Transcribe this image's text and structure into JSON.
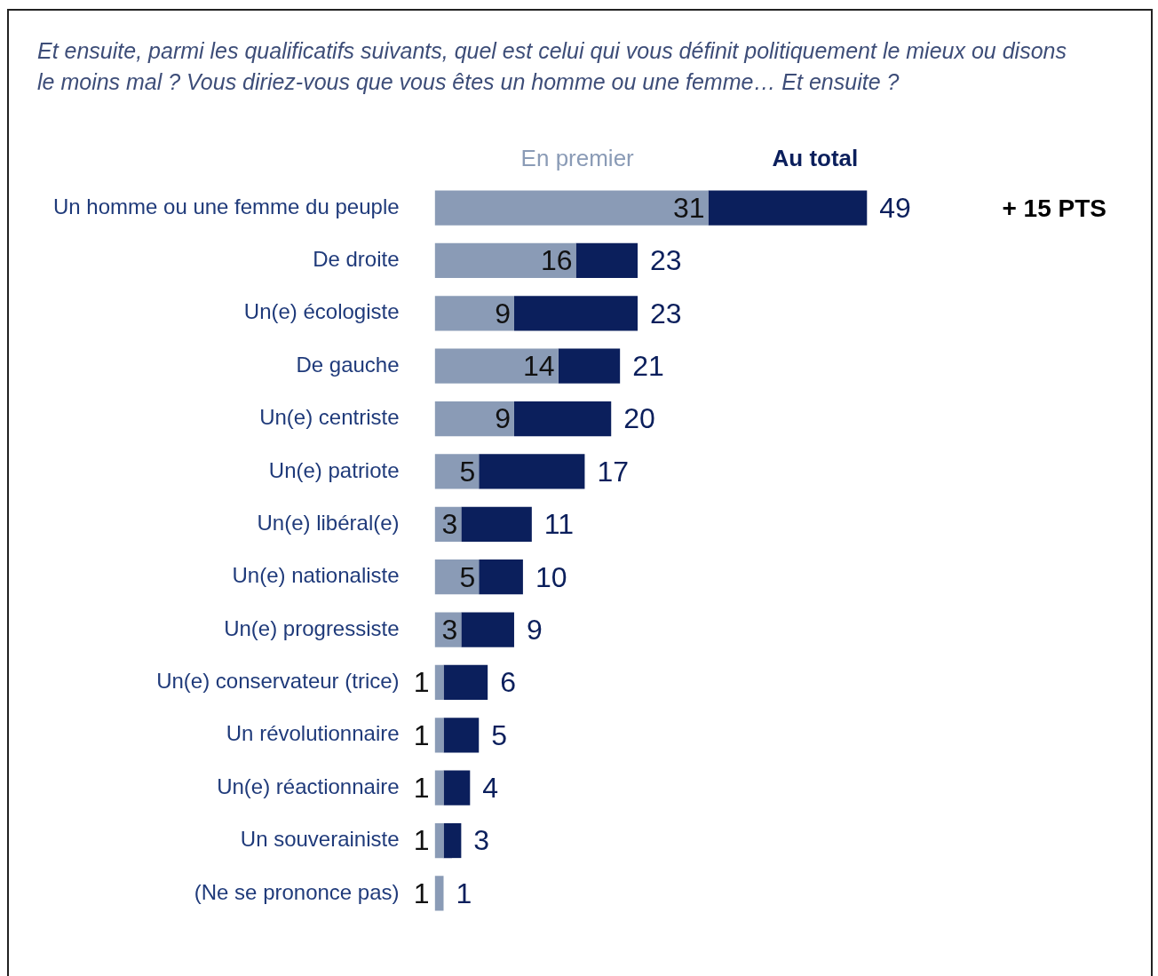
{
  "chart_data": {
    "type": "bar",
    "orientation": "horizontal",
    "stacked": true,
    "title": "Et ensuite, parmi les qualificatifs suivants, quel est celui qui vous définit politiquement le mieux ou disons le moins mal ? Vous diriez-vous que vous êtes un homme ou une femme… Et ensuite ?",
    "categories": [
      "Un homme ou une femme du peuple",
      "De droite",
      "Un(e) écologiste",
      "De gauche",
      "Un(e) centriste",
      "Un(e) patriote",
      "Un(e) libéral(e)",
      "Un(e) nationaliste",
      "Un(e) progressiste",
      "Un(e) conservateur (trice)",
      "Un révolutionnaire",
      "Un(e) réactionnaire",
      "Un souverainiste",
      "(Ne se prononce pas)"
    ],
    "series": [
      {
        "name": "En premier",
        "color": "#8a9bb6",
        "values": [
          31,
          16,
          9,
          14,
          9,
          5,
          3,
          5,
          3,
          1,
          1,
          1,
          1,
          1
        ],
        "value_labels": [
          "31",
          "16",
          "9",
          "14",
          "9",
          "5",
          "3",
          "5",
          "3",
          "1",
          "1",
          "1",
          "1",
          "1"
        ]
      },
      {
        "name": "Au total",
        "color": "#0b1f5c",
        "values": [
          18,
          7,
          14,
          7,
          11,
          12,
          8,
          5,
          6,
          5,
          4,
          3,
          2,
          0
        ]
      }
    ],
    "totals": [
      "49",
      "23",
      "23",
      "21",
      "20",
      "17",
      "11",
      "10",
      "9",
      "6",
      "5",
      "4",
      "3",
      "1"
    ],
    "legend": "top",
    "grid": false,
    "tick_labels": "y",
    "annotations": [
      "+ 15 PTS"
    ]
  }
}
